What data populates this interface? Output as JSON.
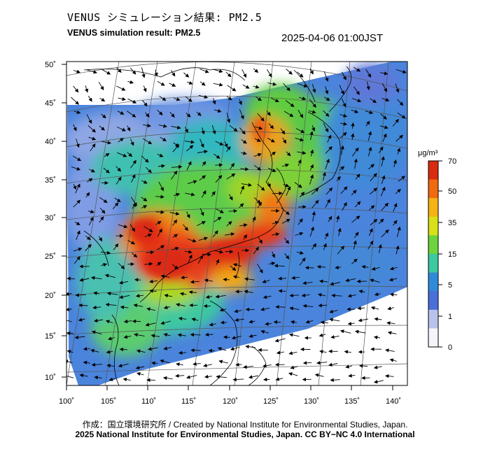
{
  "header": {
    "title_jp": "VENUS シミュレーション結果: PM2.5",
    "title_en": "VENUS simulation result: PM2.5",
    "timestamp": "2025-04-06 01:00JST"
  },
  "map": {
    "type": "heatmap",
    "lat_labels": [
      "50˚",
      "45˚",
      "40˚",
      "35˚",
      "30˚",
      "25˚",
      "20˚",
      "15˚",
      "10˚"
    ],
    "lon_labels": [
      "100˚",
      "105˚",
      "110˚",
      "115˚",
      "120˚",
      "125˚",
      "130˚",
      "135˚",
      "140˚"
    ],
    "colorbar": {
      "unit": "μg/m³",
      "labels": [
        "70",
        "50",
        "35",
        "15",
        "5",
        "1",
        "0"
      ],
      "colors": [
        "#d92b10",
        "#f06a10",
        "#f5b414",
        "#d8e018",
        "#6cd43c",
        "#3cc8a0",
        "#2f8bd8",
        "#4a6fd8",
        "#b8c2ec",
        "#f4f4fb"
      ]
    },
    "colors": {
      "ocean": "#4b7fe0",
      "land_outside": "#ffffff",
      "high_pollution": "#e0301a",
      "medium_pollution": "#f0a020",
      "low_pollution": "#4cc0c0"
    }
  },
  "footer": {
    "credit_line1": "作成：国立環境研究所 / Created by National Institute for Environmental Studies, Japan.",
    "credit_line2": "2025 National Institute for Environmental Studies, Japan. CC BY−NC 4.0 International"
  }
}
